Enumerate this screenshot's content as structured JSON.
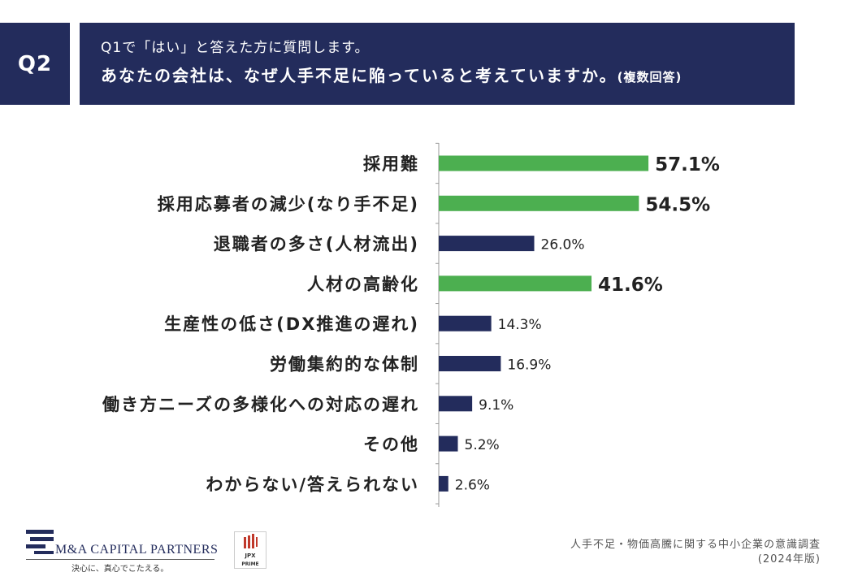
{
  "header": {
    "badge": "Q2",
    "line1": "Q1で「はい」と答えた方に質問します。",
    "line2": "あなたの会社は、なぜ人手不足に陥っていると考えていますか。",
    "line2_note": "(複数回答)"
  },
  "chart_data": {
    "type": "bar",
    "orientation": "horizontal",
    "categories": [
      "採用難",
      "採用応募者の減少(なり手不足)",
      "退職者の多さ(人材流出)",
      "人材の高齢化",
      "生産性の低さ(DX推進の遅れ)",
      "労働集約的な体制",
      "働き方ニーズの多様化への対応の遅れ",
      "その他",
      "わからない/答えられない"
    ],
    "values": [
      57.1,
      54.5,
      26.0,
      41.6,
      14.3,
      16.9,
      9.1,
      5.2,
      2.6
    ],
    "value_labels": [
      "57.1%",
      "54.5%",
      "26.0%",
      "41.6%",
      "14.3%",
      "16.9%",
      "9.1%",
      "5.2%",
      "2.6%"
    ],
    "highlighted": [
      true,
      true,
      false,
      true,
      false,
      false,
      false,
      false,
      false
    ],
    "xlim": [
      0,
      100
    ],
    "colors": {
      "highlight": "#4caf50",
      "normal": "#232c5c"
    }
  },
  "footer": {
    "logo_text": "M&A CAPITAL PARTNERS",
    "logo_tagline": "決心に、真心でこたえる。",
    "jpx_top": "JPX",
    "jpx_bottom": "PRIME",
    "source_line1": "人手不足・物価高騰に関する中小企業の意識調査",
    "source_line2": "(2024年版)"
  },
  "colors": {
    "navy": "#232c5c",
    "green": "#4caf50"
  }
}
